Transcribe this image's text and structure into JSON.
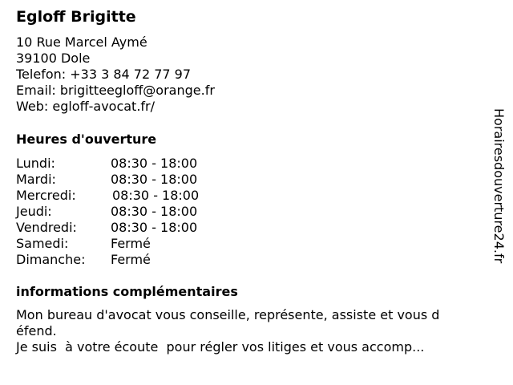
{
  "name": "Egloff Brigitte",
  "address": [
    "10 Rue Marcel Aymé",
    "39100 Dole"
  ],
  "phone": "Telefon: +33 3 84 72 77 97",
  "email": "Email: brigitteegloff@orange.fr",
  "web": "Web: egloff-avocat.fr/",
  "hours_heading": "Heures d'ouverture",
  "hours": [
    {
      "day": "Lundi:",
      "time": "08:30 - 18:00"
    },
    {
      "day": "Mardi:",
      "time": "08:30 - 18:00"
    },
    {
      "day": "Mercredi:",
      "time": "08:30 - 18:00"
    },
    {
      "day": "Jeudi:",
      "time": "08:30 - 18:00"
    },
    {
      "day": "Vendredi:",
      "time": "08:30 - 18:00"
    },
    {
      "day": "Samedi:",
      "time": "Fermé"
    },
    {
      "day": "Dimanche:",
      "time": "Fermé"
    }
  ],
  "info_heading": "informations complémentaires",
  "info_lines": [
    "Mon bureau d'avocat vous conseille, représente, assiste et vous d",
    "éfend.",
    "Je suis  à votre écoute  pour régler vos litiges et vous accomp..."
  ],
  "watermark": "Horairesdouverture24.fr"
}
